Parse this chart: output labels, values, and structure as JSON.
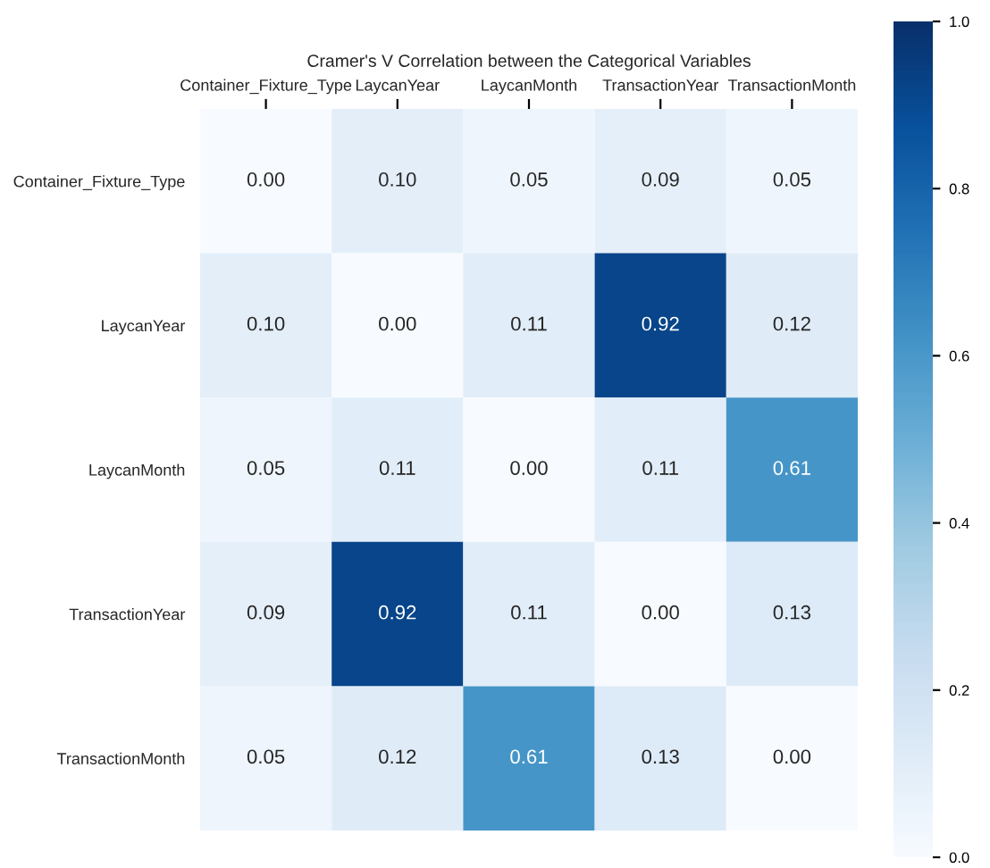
{
  "chart_data": {
    "type": "heatmap",
    "title": "Cramer's V Correlation between the Categorical Variables",
    "categories": [
      "Container_Fixture_Type",
      "LaycanYear",
      "LaycanMonth",
      "TransactionYear",
      "TransactionMonth"
    ],
    "y_categories": [
      "Container_Fixture_Type",
      "LaycanYear",
      "LaycanMonth",
      "TransactionYear",
      "TransactionMonth"
    ],
    "cells": [
      [
        0.0,
        0.1,
        0.05,
        0.09,
        0.05
      ],
      [
        0.1,
        0.0,
        0.11,
        0.92,
        0.12
      ],
      [
        0.05,
        0.11,
        0.0,
        0.11,
        0.61
      ],
      [
        0.09,
        0.92,
        0.11,
        0.0,
        0.13
      ],
      [
        0.05,
        0.12,
        0.61,
        0.13,
        0.0
      ]
    ],
    "cell_labels": [
      [
        "0.00",
        "0.10",
        "0.05",
        "0.09",
        "0.05"
      ],
      [
        "0.10",
        "0.00",
        "0.11",
        "0.92",
        "0.12"
      ],
      [
        "0.05",
        "0.11",
        "0.00",
        "0.11",
        "0.61"
      ],
      [
        "0.09",
        "0.92",
        "0.11",
        "0.00",
        "0.13"
      ],
      [
        "0.05",
        "0.12",
        "0.61",
        "0.13",
        "0.00"
      ]
    ],
    "clim": [
      0,
      1
    ],
    "cticks": [
      {
        "value": 0,
        "label": "0.0"
      },
      {
        "value": 0.2,
        "label": "0.2"
      },
      {
        "value": 0.4,
        "label": "0.4"
      },
      {
        "value": 0.6,
        "label": "0.6"
      },
      {
        "value": 0.8,
        "label": "0.8"
      },
      {
        "value": 1,
        "label": "1.0"
      }
    ]
  }
}
